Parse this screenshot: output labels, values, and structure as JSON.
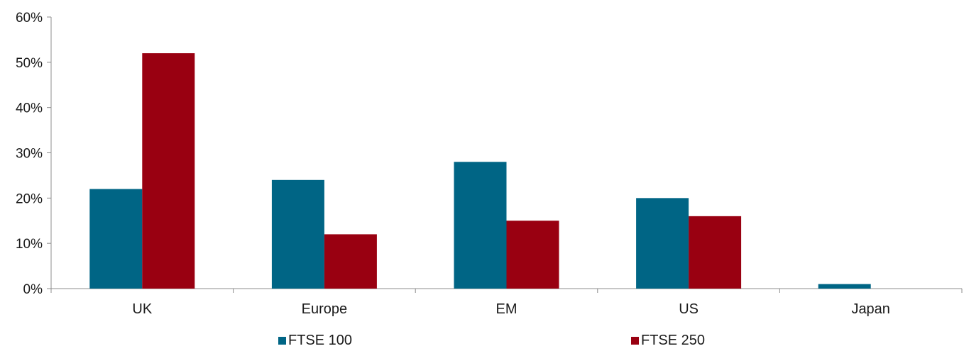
{
  "chart_data": {
    "type": "bar",
    "title": "",
    "xlabel": "",
    "ylabel": "",
    "categories": [
      "UK",
      "Europe",
      "EM",
      "US",
      "Japan"
    ],
    "series": [
      {
        "name": "FTSE 100",
        "color": "#006585",
        "values": [
          22,
          24,
          28,
          20,
          1
        ]
      },
      {
        "name": "FTSE 250",
        "color": "#990011",
        "values": [
          52,
          12,
          15,
          16,
          0
        ]
      }
    ],
    "ylim": [
      0,
      60
    ],
    "yticks": [
      0,
      10,
      20,
      30,
      40,
      50,
      60
    ],
    "ytick_labels": [
      "0%",
      "10%",
      "20%",
      "30%",
      "40%",
      "50%",
      "60%"
    ],
    "grid": false,
    "legend_position": "bottom"
  }
}
